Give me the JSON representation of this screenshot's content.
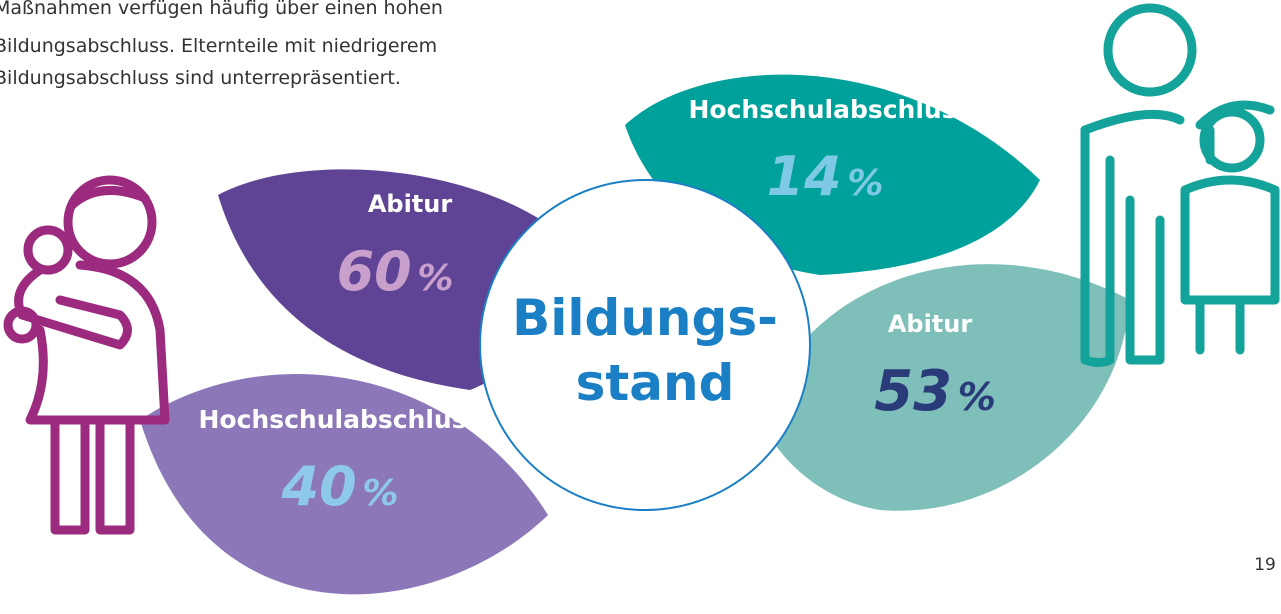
{
  "intro": {
    "lines": [
      "Maßnahmen verfügen häufig über einen hohen",
      "Bildungsabschluss. Elternteile mit niedrigerem",
      "Bildungsabschluss sind unterrepräsentiert."
    ]
  },
  "center": {
    "lines": [
      "Bildungs-",
      "stand"
    ]
  },
  "mothers": [
    {
      "label": "Abitur",
      "value": 60,
      "unit": "%"
    },
    {
      "label": "Hochschulabschluss",
      "value": 40,
      "unit": "%"
    }
  ],
  "fathers": [
    {
      "label": "Hochschulabschluss",
      "value": 14,
      "unit": "%"
    },
    {
      "label": "Abitur",
      "value": 53,
      "unit": "%"
    }
  ],
  "page_number": "19"
}
